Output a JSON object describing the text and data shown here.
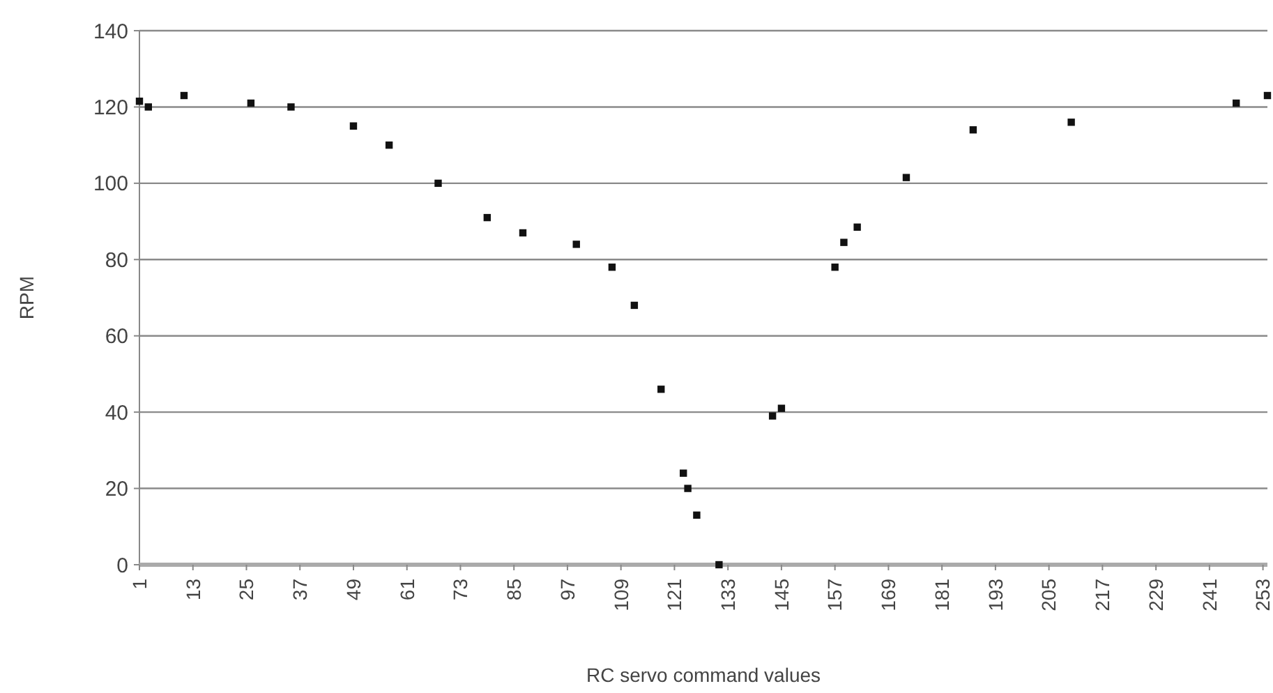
{
  "chart_data": {
    "type": "scatter",
    "xlabel": "RC servo command values",
    "ylabel": "RPM",
    "x": [
      1,
      3,
      11,
      26,
      35,
      49,
      57,
      68,
      79,
      87,
      99,
      107,
      112,
      118,
      123,
      124,
      126,
      131,
      143,
      145,
      157,
      159,
      162,
      173,
      188,
      210,
      247,
      254
    ],
    "series": [
      {
        "color": "#111111",
        "values": [
          121.5,
          120,
          123,
          121,
          120,
          115,
          110,
          100,
          91,
          87,
          84,
          78,
          68,
          46,
          24,
          20,
          13,
          0,
          39,
          41,
          78,
          84.5,
          88.5,
          101.5,
          114,
          116,
          121,
          123
        ]
      }
    ],
    "xlim": [
      1,
      254
    ],
    "xticks": [
      1,
      13,
      25,
      37,
      49,
      61,
      73,
      85,
      97,
      109,
      121,
      133,
      145,
      157,
      169,
      181,
      193,
      205,
      217,
      229,
      241,
      253
    ],
    "ylim": [
      0,
      140
    ],
    "yticks": [
      0,
      20,
      40,
      60,
      80,
      100,
      120,
      140
    ],
    "grid": "y",
    "marker": "square"
  }
}
